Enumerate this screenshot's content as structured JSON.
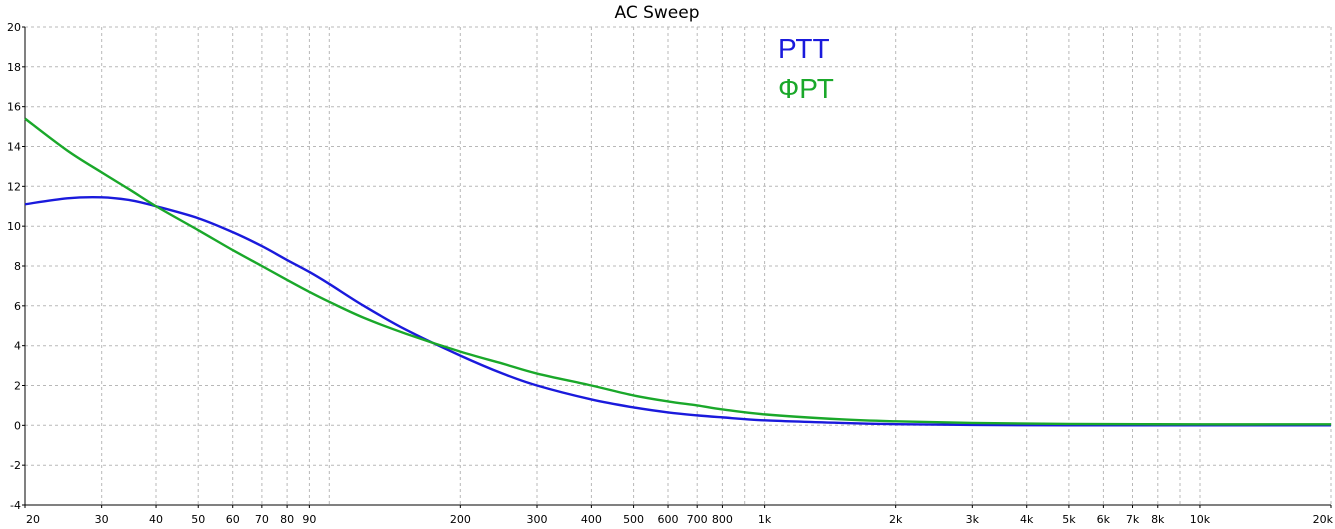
{
  "chart_data": {
    "type": "line",
    "title": "AC Sweep",
    "xscale": "log",
    "xlim": [
      20,
      20000
    ],
    "ylim": [
      -4,
      20
    ],
    "grid": true,
    "legend_position": "top-center",
    "x_ticks": [
      {
        "value": 20,
        "label": "20"
      },
      {
        "value": 30,
        "label": "30"
      },
      {
        "value": 40,
        "label": "40"
      },
      {
        "value": 50,
        "label": "50"
      },
      {
        "value": 60,
        "label": "60"
      },
      {
        "value": 70,
        "label": "70"
      },
      {
        "value": 80,
        "label": "80"
      },
      {
        "value": 90,
        "label": "90"
      },
      {
        "value": 200,
        "label": "200"
      },
      {
        "value": 300,
        "label": "300"
      },
      {
        "value": 400,
        "label": "400"
      },
      {
        "value": 500,
        "label": "500"
      },
      {
        "value": 600,
        "label": "600"
      },
      {
        "value": 700,
        "label": "700"
      },
      {
        "value": 800,
        "label": "800"
      },
      {
        "value": 1000,
        "label": "1k"
      },
      {
        "value": 2000,
        "label": "2k"
      },
      {
        "value": 3000,
        "label": "3k"
      },
      {
        "value": 4000,
        "label": "4k"
      },
      {
        "value": 5000,
        "label": "5k"
      },
      {
        "value": 6000,
        "label": "6k"
      },
      {
        "value": 7000,
        "label": "7k"
      },
      {
        "value": 8000,
        "label": "8k"
      },
      {
        "value": 10000,
        "label": "10k"
      },
      {
        "value": 20000,
        "label": "20k"
      }
    ],
    "x_grid": [
      20,
      30,
      40,
      50,
      60,
      70,
      80,
      90,
      100,
      200,
      300,
      400,
      500,
      600,
      700,
      800,
      900,
      1000,
      2000,
      3000,
      4000,
      5000,
      6000,
      7000,
      8000,
      9000,
      10000,
      20000
    ],
    "y_ticks": [
      {
        "value": 20,
        "label": "20"
      },
      {
        "value": 18,
        "label": "18"
      },
      {
        "value": 16,
        "label": "16"
      },
      {
        "value": 14,
        "label": "14"
      },
      {
        "value": 12,
        "label": "12"
      },
      {
        "value": 10,
        "label": "10"
      },
      {
        "value": 8,
        "label": "8"
      },
      {
        "value": 6,
        "label": "6"
      },
      {
        "value": 4,
        "label": "4"
      },
      {
        "value": 2,
        "label": "2"
      },
      {
        "value": 0,
        "label": "0"
      },
      {
        "value": -2,
        "label": "-2"
      },
      {
        "value": -4,
        "label": "-4"
      }
    ],
    "series": [
      {
        "name": "РТТ",
        "color": "#1a1adc",
        "points": [
          [
            20,
            11.1
          ],
          [
            25,
            11.4
          ],
          [
            30,
            11.45
          ],
          [
            35,
            11.3
          ],
          [
            40,
            11.0
          ],
          [
            50,
            10.4
          ],
          [
            60,
            9.7
          ],
          [
            70,
            9.0
          ],
          [
            80,
            8.3
          ],
          [
            90,
            7.7
          ],
          [
            100,
            7.1
          ],
          [
            120,
            6.0
          ],
          [
            150,
            4.8
          ],
          [
            200,
            3.5
          ],
          [
            250,
            2.6
          ],
          [
            300,
            2.0
          ],
          [
            400,
            1.3
          ],
          [
            500,
            0.9
          ],
          [
            600,
            0.65
          ],
          [
            700,
            0.5
          ],
          [
            800,
            0.4
          ],
          [
            1000,
            0.25
          ],
          [
            1500,
            0.12
          ],
          [
            2000,
            0.06
          ],
          [
            3000,
            0.02
          ],
          [
            5000,
            0.0
          ],
          [
            10000,
            0.0
          ],
          [
            20000,
            0.0
          ]
        ]
      },
      {
        "name": "ФРТ",
        "color": "#1aa82a",
        "points": [
          [
            20,
            15.4
          ],
          [
            25,
            13.8
          ],
          [
            30,
            12.7
          ],
          [
            35,
            11.8
          ],
          [
            40,
            11.0
          ],
          [
            50,
            9.8
          ],
          [
            60,
            8.8
          ],
          [
            70,
            8.0
          ],
          [
            80,
            7.3
          ],
          [
            90,
            6.7
          ],
          [
            100,
            6.2
          ],
          [
            120,
            5.4
          ],
          [
            150,
            4.6
          ],
          [
            200,
            3.7
          ],
          [
            250,
            3.1
          ],
          [
            300,
            2.6
          ],
          [
            400,
            2.0
          ],
          [
            500,
            1.5
          ],
          [
            600,
            1.2
          ],
          [
            700,
            1.0
          ],
          [
            800,
            0.8
          ],
          [
            1000,
            0.55
          ],
          [
            1500,
            0.3
          ],
          [
            2000,
            0.2
          ],
          [
            3000,
            0.12
          ],
          [
            5000,
            0.07
          ],
          [
            10000,
            0.05
          ],
          [
            20000,
            0.05
          ]
        ]
      }
    ]
  }
}
